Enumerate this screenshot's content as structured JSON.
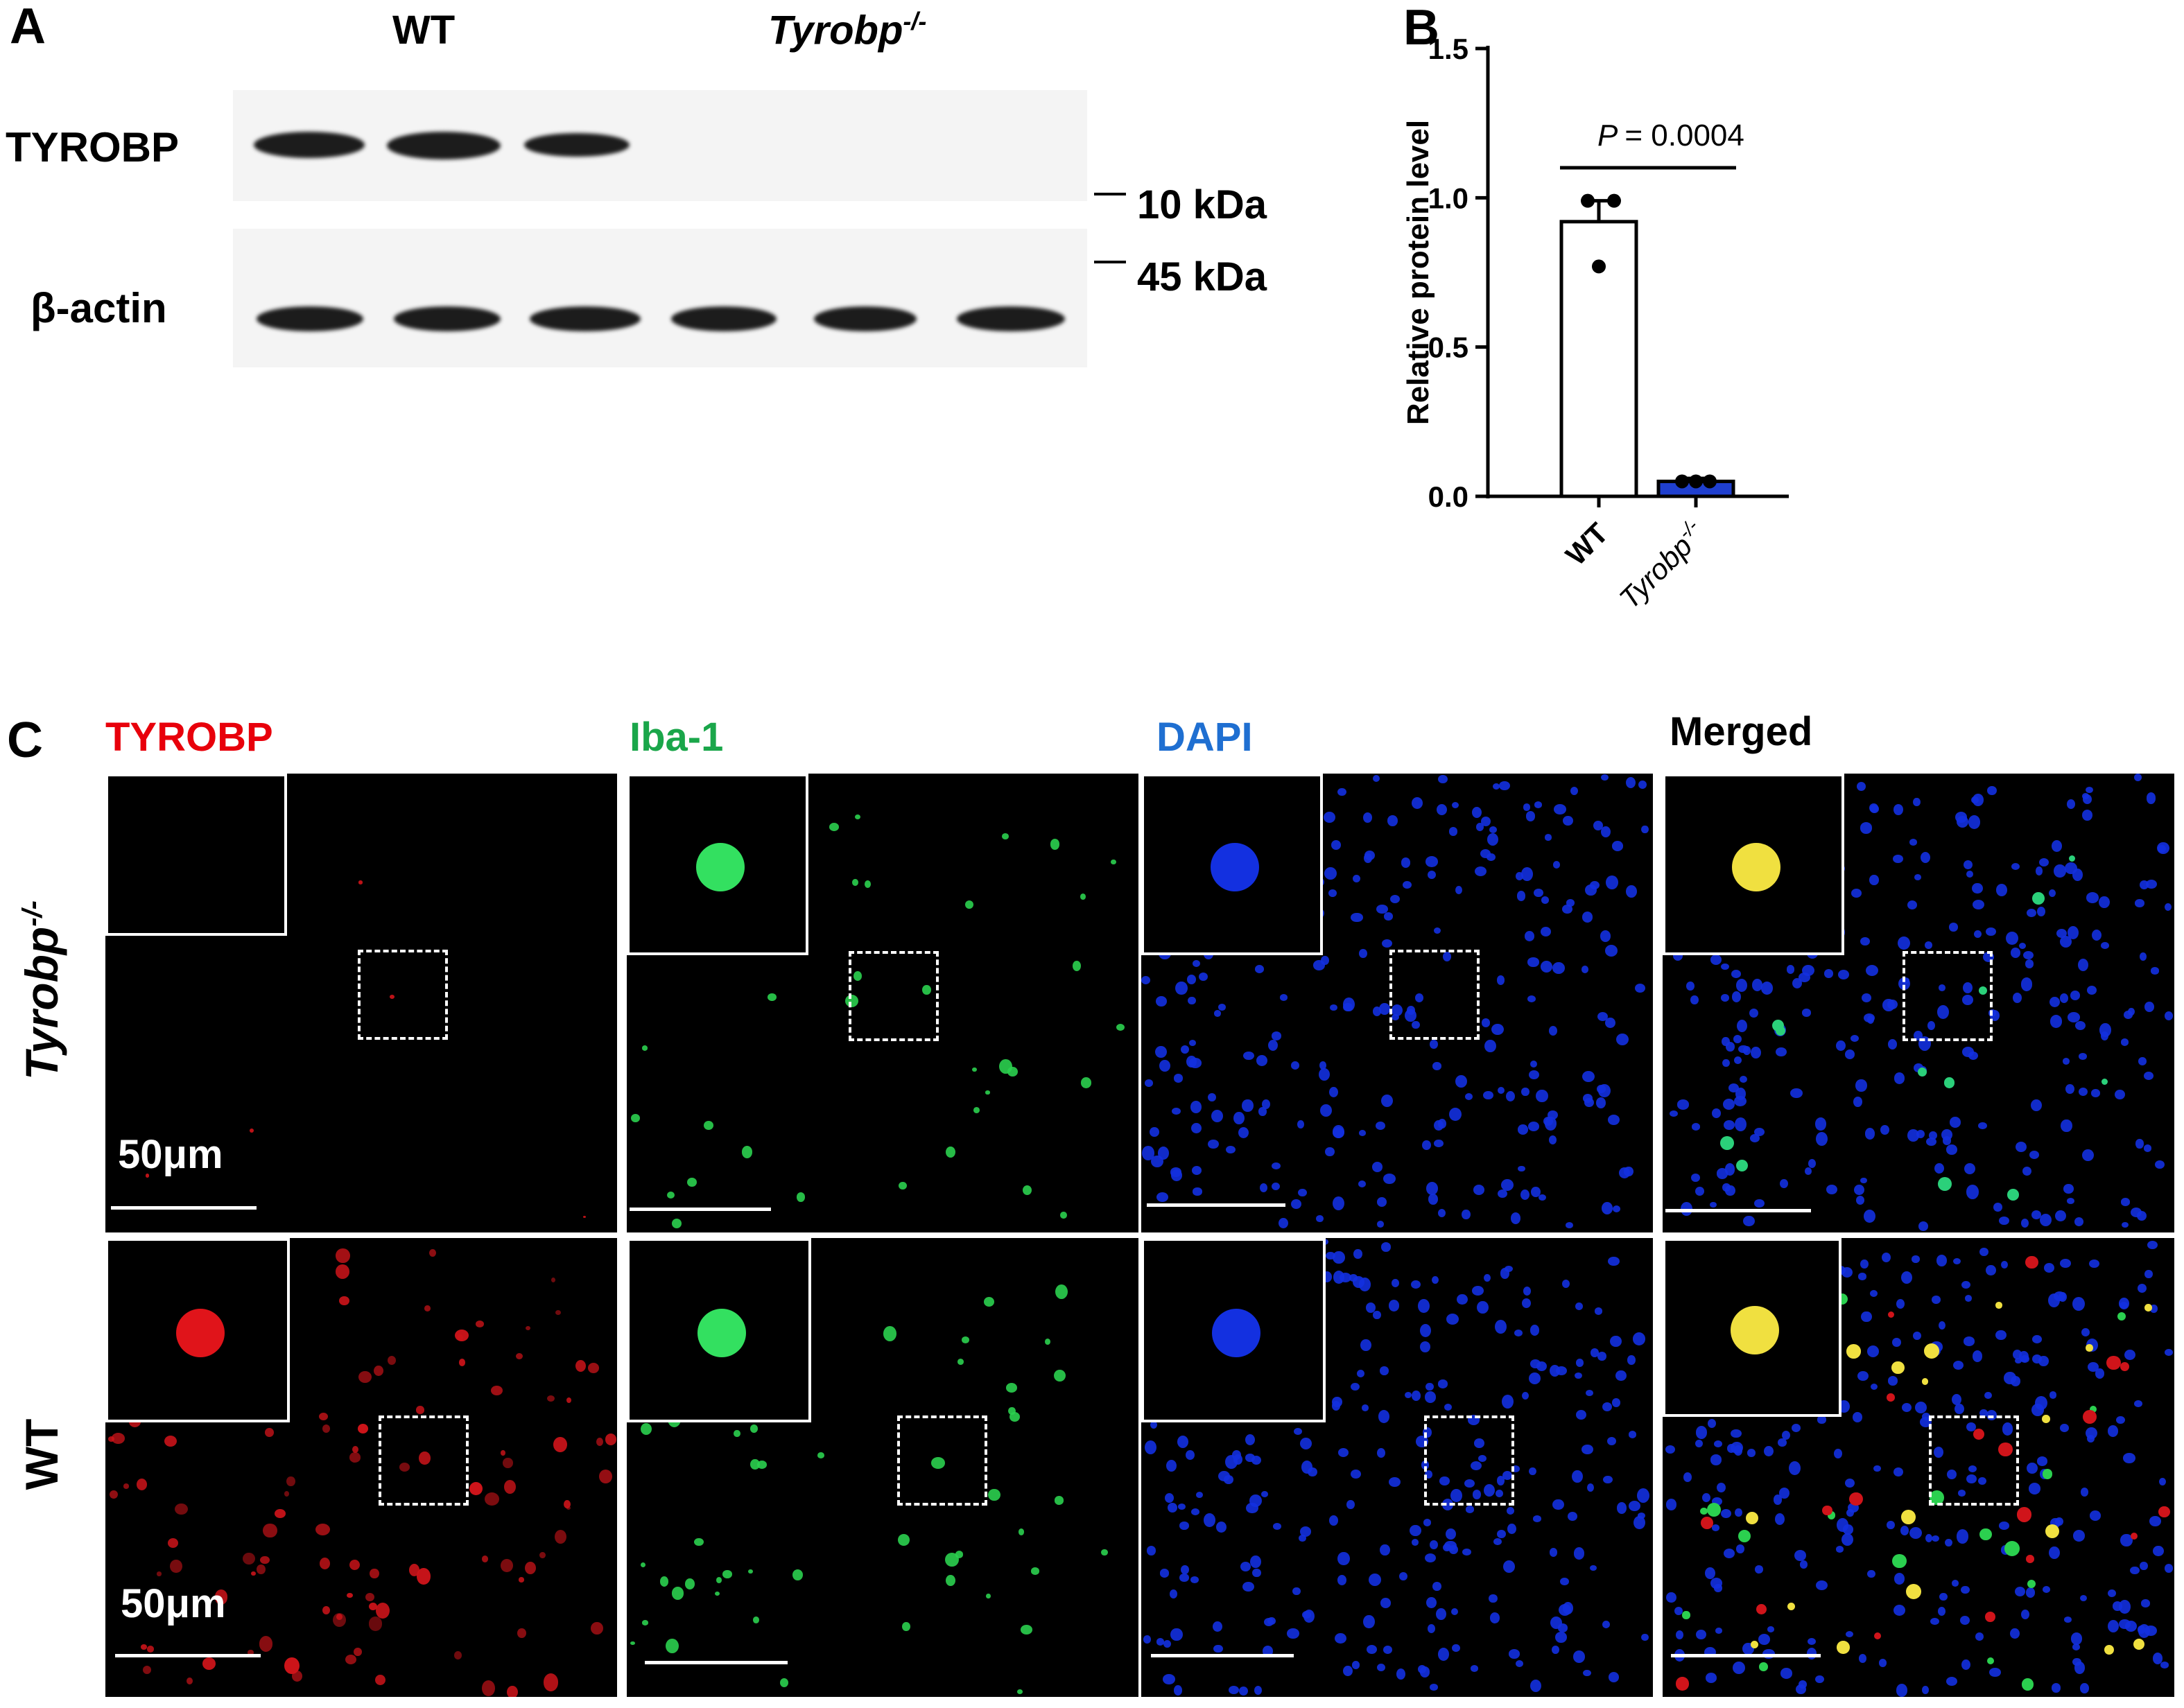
{
  "panels": {
    "a": {
      "letter": "A",
      "lane_groups": [
        "WT",
        "Tyrobp"
      ],
      "genotype_superscript": "-/-",
      "rows": [
        "TYROBP",
        "β-actin"
      ],
      "markers": [
        "10 kDa",
        "45 kDa"
      ]
    },
    "b": {
      "letter": "B",
      "p_label": "P",
      "p_value": "= 0.0004"
    },
    "c": {
      "letter": "C",
      "columns": [
        "TYROBP",
        "Iba-1",
        "DAPI",
        "Merged"
      ],
      "column_colors": [
        "#e8000b",
        "#1aa64a",
        "#1f6fd1",
        "#000000"
      ],
      "rows": [
        "Tyrobp",
        "WT"
      ],
      "row_superscript": "-/-",
      "scale_label": "50μm"
    }
  },
  "chart_data": {
    "type": "bar",
    "title": "",
    "xlabel": "",
    "ylabel": "Relative protein level",
    "categories": [
      "WT",
      "Tyrobp"
    ],
    "category_superscripts": [
      "",
      "-/-"
    ],
    "values": [
      0.92,
      0.05
    ],
    "error_upper": [
      0.99,
      0.06
    ],
    "points": [
      [
        0.99,
        0.99,
        0.77
      ],
      [
        0.05,
        0.05,
        0.05
      ]
    ],
    "colors": [
      "#ffffff",
      "#1f3fcf"
    ],
    "ylim": [
      0,
      1.5
    ],
    "yticks": [
      "0.0",
      "0.5",
      "1.0",
      "1.5"
    ],
    "grid": false
  }
}
